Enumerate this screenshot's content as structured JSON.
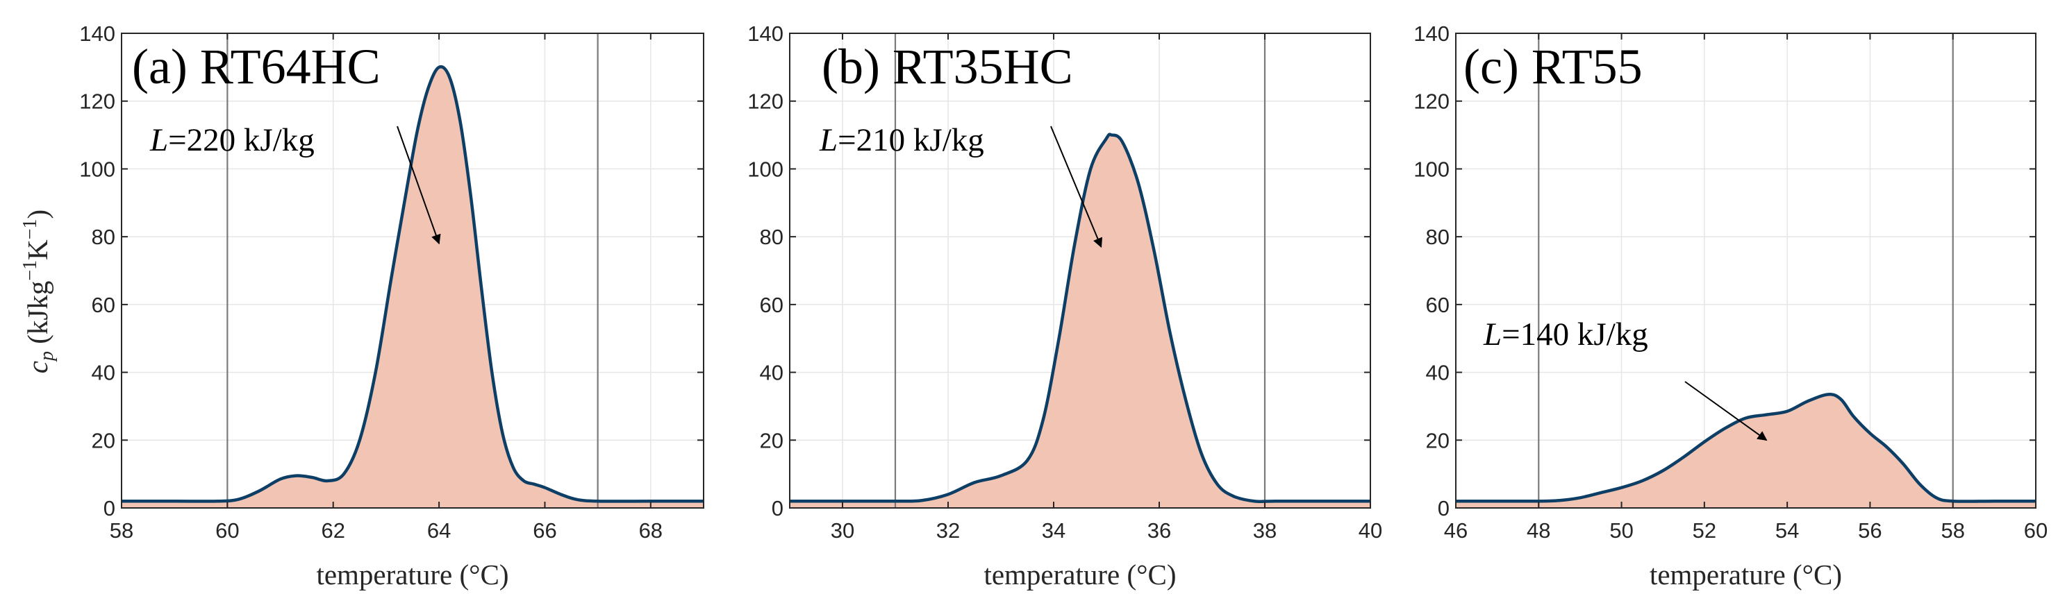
{
  "colors": {
    "curve": "#0d3f66",
    "fill": "#f2c4b4",
    "grid": "#e6e6e6",
    "vline": "#7a7a7a",
    "axis": "#262626"
  },
  "ylabel": {
    "symbol": "c",
    "sub": "p",
    "unit_open": " (kJkg",
    "exp1": "−1",
    "mid": "K",
    "exp2": "−1",
    "unit_close": ")"
  },
  "chart_data": [
    {
      "type": "area",
      "title": "(a)  RT64HC",
      "xlabel": "temperature (°C)",
      "ylabel": "c_p (kJkg^-1K^-1)",
      "xlim": [
        58,
        69
      ],
      "ylim": [
        0,
        140
      ],
      "xticks": [
        58,
        60,
        62,
        64,
        66,
        68
      ],
      "yticks": [
        0,
        20,
        40,
        60,
        80,
        100,
        120,
        140
      ],
      "vlines": [
        60,
        67
      ],
      "grid": true,
      "annotation": {
        "var": "L",
        "text": "=220 kJ/kg",
        "arrow_to": [
          64,
          78
        ]
      },
      "x": [
        58,
        59,
        59.8,
        60.2,
        60.6,
        61,
        61.3,
        61.6,
        61.9,
        62.2,
        62.5,
        62.8,
        63.1,
        63.4,
        63.6,
        63.8,
        64,
        64.2,
        64.4,
        64.6,
        64.8,
        65,
        65.2,
        65.4,
        65.6,
        65.8,
        66,
        66.3,
        66.6,
        67,
        68,
        69
      ],
      "y": [
        2,
        2,
        2,
        2.5,
        5,
        8.5,
        9.5,
        9,
        8,
        10,
        20,
        40,
        68,
        95,
        112,
        124,
        130,
        127,
        114,
        92,
        65,
        40,
        22,
        12,
        8,
        7,
        6,
        4,
        2.5,
        2,
        2,
        2
      ]
    },
    {
      "type": "area",
      "title": "(b) RT35HC",
      "xlabel": "temperature (°C)",
      "ylabel": "",
      "xlim": [
        29,
        40
      ],
      "ylim": [
        0,
        140
      ],
      "xticks": [
        30,
        32,
        34,
        36,
        38,
        40
      ],
      "yticks": [
        0,
        20,
        40,
        60,
        80,
        100,
        120,
        140
      ],
      "vlines": [
        31,
        38
      ],
      "grid": true,
      "annotation": {
        "var": "L",
        "text": "=210 kJ/kg",
        "arrow_to": [
          34.9,
          77
        ]
      },
      "x": [
        29,
        30,
        31,
        31.5,
        32,
        32.5,
        33,
        33.5,
        33.8,
        34.1,
        34.4,
        34.7,
        35,
        35.1,
        35.3,
        35.6,
        35.9,
        36.2,
        36.5,
        36.8,
        37.1,
        37.4,
        37.8,
        38.2,
        39,
        40
      ],
      "y": [
        2,
        2,
        2,
        2.2,
        4,
        7.5,
        9.5,
        14,
        26,
        50,
        78,
        100,
        109,
        110,
        108,
        96,
        76,
        52,
        32,
        16,
        7,
        3.5,
        2,
        2,
        2,
        2
      ]
    },
    {
      "type": "area",
      "title": "(c) RT55",
      "xlabel": "temperature (°C)",
      "ylabel": "",
      "xlim": [
        46,
        60
      ],
      "ylim": [
        0,
        140
      ],
      "xticks": [
        46,
        48,
        50,
        52,
        54,
        56,
        58,
        60
      ],
      "yticks": [
        0,
        20,
        40,
        60,
        80,
        100,
        120,
        140
      ],
      "vlines": [
        48,
        58
      ],
      "grid": true,
      "annotation": {
        "var": "L",
        "text": "=140 kJ/kg",
        "arrow_to": [
          53.5,
          20
        ]
      },
      "x": [
        46,
        47,
        48,
        48.5,
        49,
        49.5,
        50,
        50.5,
        51,
        51.5,
        52,
        52.5,
        53,
        53.5,
        54,
        54.5,
        55,
        55.3,
        55.6,
        56,
        56.4,
        56.8,
        57.2,
        57.6,
        58,
        59,
        60
      ],
      "y": [
        2,
        2,
        2,
        2.2,
        3,
        4.5,
        6,
        8,
        11,
        15,
        19.5,
        23.5,
        26.5,
        27.5,
        28.5,
        31.5,
        33.5,
        32,
        27,
        22,
        18,
        13,
        7,
        3,
        2,
        2,
        2
      ]
    }
  ]
}
